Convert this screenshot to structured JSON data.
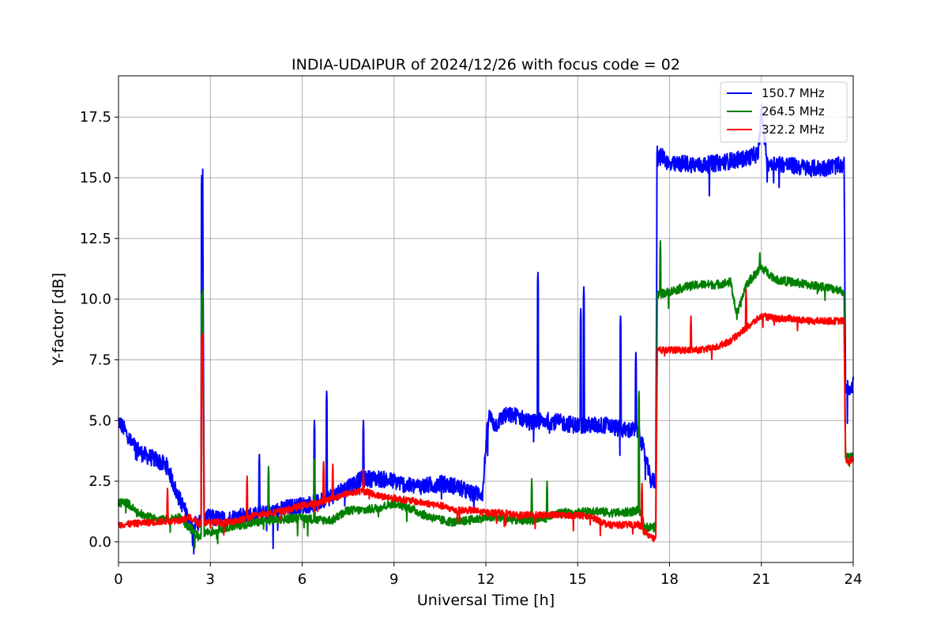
{
  "chart_data": {
    "type": "line",
    "title": "INDIA-UDAIPUR of 2024/12/26 with focus code = 02",
    "xlabel": "Universal Time [h]",
    "ylabel": "Y-factor [dB]",
    "xlim": [
      0,
      24
    ],
    "ylim": [
      -0.85,
      19.2
    ],
    "xticks": [
      0,
      3,
      6,
      9,
      12,
      15,
      18,
      21,
      24
    ],
    "yticks": [
      0.0,
      2.5,
      5.0,
      7.5,
      10.0,
      12.5,
      15.0,
      17.5
    ],
    "ytick_labels": [
      "0.0",
      "2.5",
      "5.0",
      "7.5",
      "10.0",
      "12.5",
      "15.0",
      "17.5"
    ],
    "grid": true,
    "legend_position": "top-right",
    "series": [
      {
        "name": "150.7 MHz",
        "color": "#0000ff",
        "noise": 0.35,
        "x": [
          0,
          0.2,
          0.4,
          0.8,
          1.2,
          1.6,
          1.9,
          2.1,
          2.4,
          2.7,
          2.75,
          2.8,
          3.0,
          3.5,
          4.0,
          4.5,
          5.0,
          5.5,
          6.0,
          6.5,
          7.0,
          7.5,
          8.0,
          8.5,
          9.0,
          9.5,
          10.0,
          10.5,
          11.0,
          11.5,
          11.9,
          12.0,
          12.1,
          12.3,
          12.6,
          13.0,
          13.5,
          14.0,
          14.5,
          15.0,
          15.5,
          16.0,
          16.5,
          17.0,
          17.2,
          17.4,
          17.55,
          17.6,
          17.8,
          18.0,
          18.5,
          19.0,
          19.5,
          20.0,
          20.5,
          20.9,
          21.0,
          21.2,
          21.5,
          22.0,
          22.5,
          23.0,
          23.5,
          23.7,
          23.75,
          23.8,
          24.0
        ],
        "y": [
          5.0,
          4.6,
          4.1,
          3.6,
          3.4,
          3.1,
          2.0,
          1.5,
          0.6,
          0.9,
          15.0,
          1.0,
          1.0,
          0.9,
          1.1,
          1.1,
          1.2,
          1.4,
          1.5,
          1.6,
          1.9,
          2.3,
          2.6,
          2.6,
          2.5,
          2.3,
          2.3,
          2.4,
          2.3,
          2.0,
          2.0,
          4.0,
          5.2,
          4.8,
          5.2,
          5.2,
          4.9,
          5.0,
          4.9,
          4.8,
          4.8,
          4.8,
          4.6,
          4.6,
          3.5,
          2.5,
          2.5,
          15.8,
          15.9,
          15.5,
          15.6,
          15.5,
          15.6,
          15.7,
          15.8,
          16.0,
          17.8,
          15.6,
          15.6,
          15.5,
          15.4,
          15.4,
          15.5,
          15.5,
          6.5,
          6.3,
          6.5
        ],
        "spikes": [
          [
            2.72,
            15.1
          ],
          [
            4.6,
            3.6
          ],
          [
            6.4,
            5.0
          ],
          [
            6.8,
            6.2
          ],
          [
            8.0,
            5.0
          ],
          [
            13.7,
            11.1
          ],
          [
            15.1,
            9.6
          ],
          [
            15.2,
            10.5
          ],
          [
            16.4,
            9.3
          ],
          [
            16.9,
            7.8
          ],
          [
            17.6,
            16.3
          ]
        ]
      },
      {
        "name": "264.5 MHz",
        "color": "#008000",
        "noise": 0.18,
        "x": [
          0,
          0.3,
          0.6,
          1.0,
          1.5,
          2.0,
          2.4,
          2.6,
          2.7,
          2.75,
          2.8,
          3.0,
          3.5,
          4.0,
          4.5,
          5.0,
          6.0,
          6.5,
          7.0,
          7.5,
          8.0,
          8.5,
          9.0,
          9.5,
          10.0,
          10.5,
          11.0,
          11.5,
          12.0,
          12.5,
          13.0,
          13.5,
          14.0,
          14.5,
          15.0,
          15.5,
          16.0,
          16.5,
          17.0,
          17.2,
          17.5,
          17.55,
          17.6,
          18.0,
          18.5,
          19.0,
          19.5,
          20.0,
          20.2,
          20.5,
          21.0,
          21.5,
          22.0,
          22.5,
          23.0,
          23.5,
          23.7,
          23.75,
          23.8,
          24.0
        ],
        "y": [
          1.6,
          1.6,
          1.2,
          1.0,
          0.9,
          1.0,
          0.5,
          0.2,
          0.3,
          10.2,
          0.4,
          0.4,
          0.6,
          0.7,
          0.8,
          0.9,
          1.0,
          0.9,
          0.9,
          1.3,
          1.3,
          1.4,
          1.6,
          1.4,
          1.1,
          0.9,
          0.8,
          0.9,
          1.0,
          1.0,
          0.9,
          0.9,
          1.0,
          1.2,
          1.2,
          1.3,
          1.2,
          1.2,
          1.3,
          0.6,
          0.6,
          0.6,
          10.2,
          10.3,
          10.5,
          10.6,
          10.6,
          10.7,
          9.3,
          10.6,
          11.3,
          10.8,
          10.7,
          10.6,
          10.5,
          10.4,
          10.3,
          3.6,
          3.5,
          3.5
        ],
        "spikes": [
          [
            2.72,
            10.2
          ],
          [
            4.9,
            3.1
          ],
          [
            6.4,
            3.4
          ],
          [
            13.5,
            2.6
          ],
          [
            14.0,
            2.5
          ],
          [
            17.0,
            6.2
          ],
          [
            17.7,
            12.4
          ],
          [
            20.95,
            11.9
          ]
        ]
      },
      {
        "name": "322.2 MHz",
        "color": "#ff0000",
        "noise": 0.14,
        "x": [
          0,
          0.5,
          1.0,
          1.5,
          2.0,
          2.3,
          2.6,
          2.7,
          2.75,
          2.8,
          3.0,
          3.5,
          4.0,
          4.5,
          5.0,
          5.5,
          6.0,
          6.5,
          7.0,
          7.5,
          8.0,
          8.5,
          9.0,
          9.5,
          10.0,
          10.5,
          11.0,
          11.5,
          12.0,
          12.5,
          13.0,
          13.5,
          14.0,
          14.5,
          15.0,
          15.5,
          16.0,
          16.5,
          17.0,
          17.2,
          17.5,
          17.55,
          17.6,
          18.0,
          18.5,
          19.0,
          19.5,
          20.0,
          20.5,
          21.0,
          21.5,
          22.0,
          22.5,
          23.0,
          23.5,
          23.7,
          23.75,
          23.8,
          24.0
        ],
        "y": [
          0.7,
          0.75,
          0.8,
          0.85,
          0.9,
          1.0,
          0.8,
          0.8,
          8.5,
          0.8,
          0.8,
          0.8,
          0.9,
          1.1,
          1.2,
          1.3,
          1.5,
          1.6,
          1.8,
          2.0,
          2.1,
          1.9,
          1.8,
          1.7,
          1.6,
          1.5,
          1.3,
          1.3,
          1.2,
          1.2,
          1.1,
          1.1,
          1.1,
          1.1,
          1.1,
          1.0,
          0.7,
          0.7,
          0.7,
          0.4,
          0.1,
          0.1,
          7.9,
          7.9,
          7.9,
          7.9,
          8.0,
          8.3,
          8.8,
          9.3,
          9.2,
          9.2,
          9.1,
          9.1,
          9.1,
          9.1,
          3.4,
          3.3,
          3.4
        ],
        "spikes": [
          [
            1.6,
            2.2
          ],
          [
            2.72,
            8.5
          ],
          [
            4.2,
            2.7
          ],
          [
            6.7,
            3.3
          ],
          [
            7.0,
            3.2
          ],
          [
            8.0,
            3.0
          ],
          [
            17.1,
            2.4
          ],
          [
            18.7,
            9.3
          ],
          [
            20.5,
            10.4
          ]
        ]
      }
    ]
  }
}
